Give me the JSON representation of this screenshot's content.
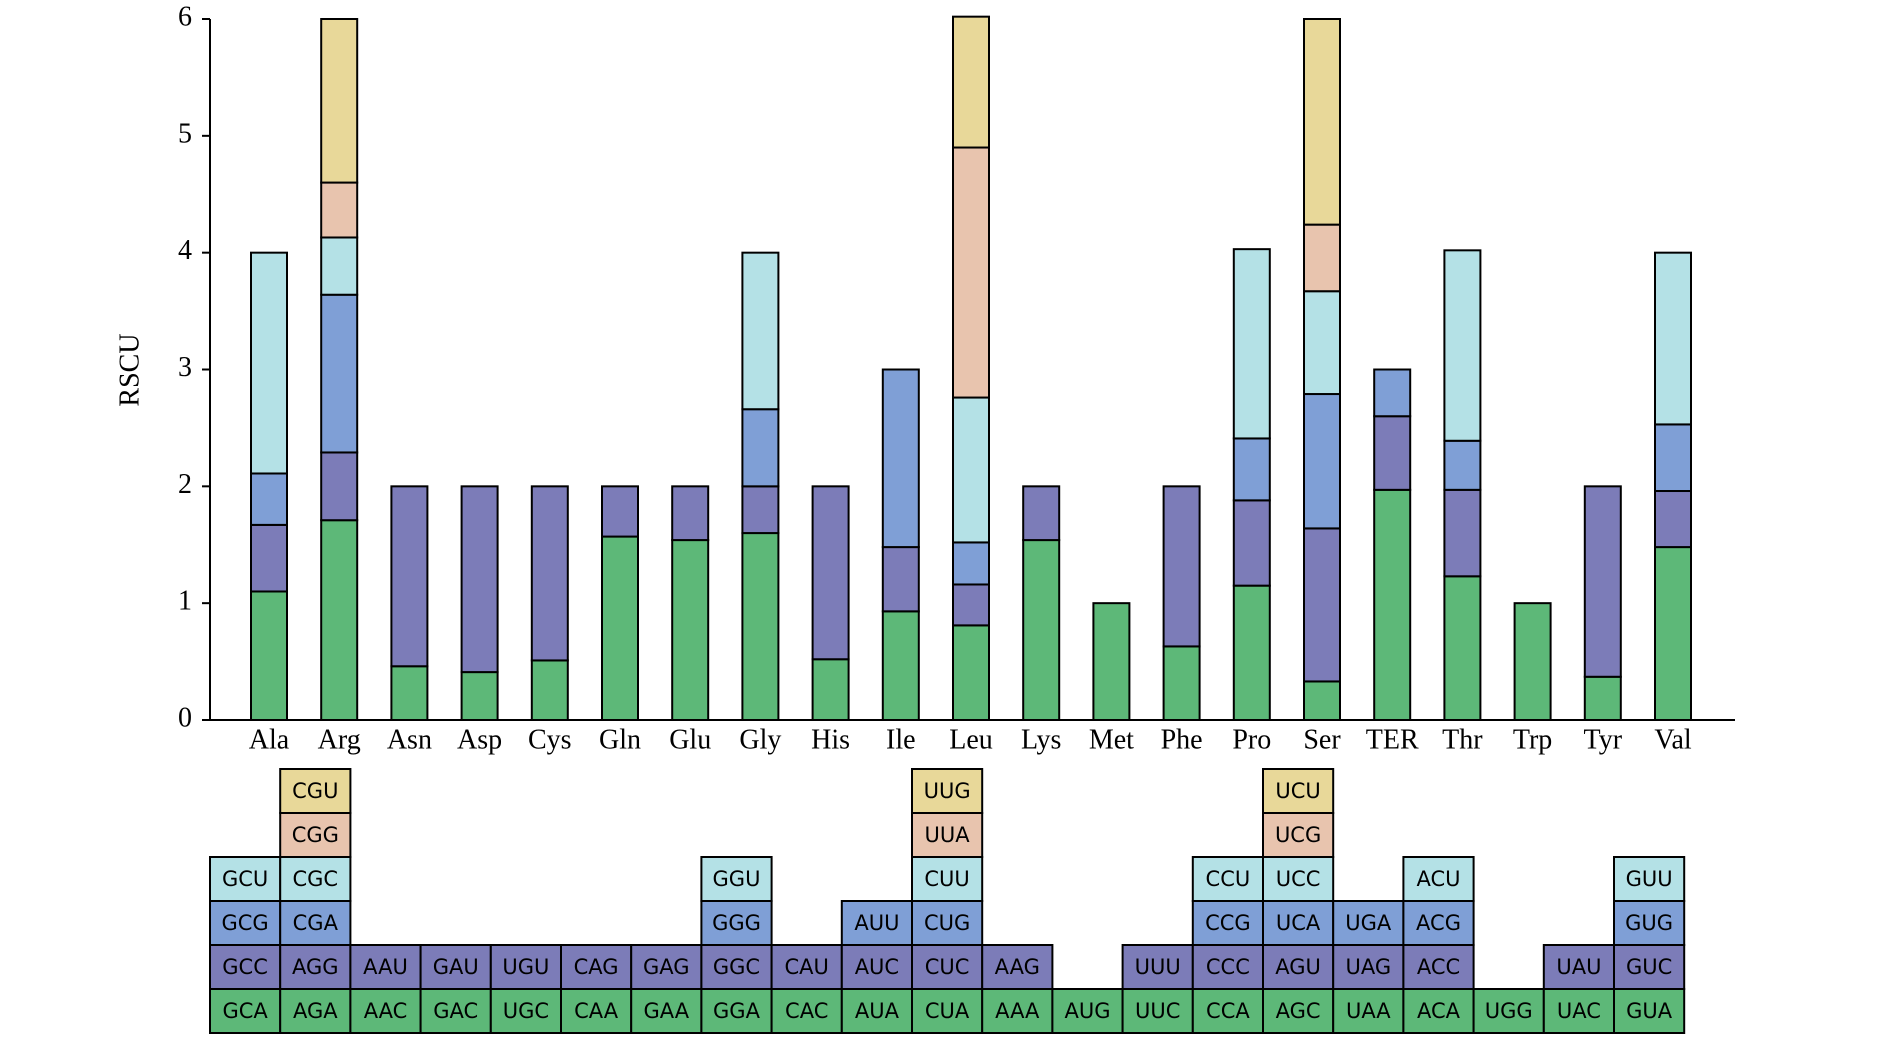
{
  "chart_data": {
    "type": "stacked-bar-codon",
    "y_label": "RSCU",
    "categories": [
      "Ala",
      "Arg",
      "Asn",
      "Asp",
      "Cys",
      "Gln",
      "Glu",
      "Gly",
      "His",
      "Ile",
      "Leu",
      "Lys",
      "Met",
      "Phe",
      "Pro",
      "Ser",
      "TER",
      "Thr",
      "Trp",
      "Tyr",
      "Val"
    ],
    "ylim": [
      0,
      6
    ],
    "yticks": [
      0,
      1,
      2,
      3,
      4,
      5,
      6
    ],
    "series": [
      {
        "color": "#5db878",
        "values": [
          1.1,
          1.71,
          0.46,
          0.41,
          0.51,
          1.57,
          1.54,
          1.6,
          0.52,
          0.93,
          0.81,
          1.54,
          1.0,
          0.63,
          1.15,
          0.33,
          1.97,
          1.23,
          1.0,
          0.37,
          1.48
        ],
        "labels": [
          "GCA",
          "AGA",
          "AAC",
          "GAC",
          "UGC",
          "CAA",
          "GAA",
          "GGA",
          "CAC",
          "AUA",
          "CUA",
          "AAA",
          "AUG",
          "UUC",
          "CCA",
          "AGC",
          "UAA",
          "ACA",
          "UGG",
          "UAC",
          "GUA"
        ]
      },
      {
        "color": "#7c7cb8",
        "values": [
          0.57,
          0.58,
          1.54,
          1.59,
          1.49,
          0.43,
          0.46,
          0.4,
          1.48,
          0.55,
          0.35,
          0.46,
          null,
          1.37,
          0.73,
          1.31,
          0.63,
          0.74,
          null,
          1.63,
          0.48
        ],
        "labels": [
          "GCC",
          "AGG",
          "AAU",
          "GAU",
          "UGU",
          "CAG",
          "GAG",
          "GGC",
          "CAU",
          "AUC",
          "CUC",
          "AAG",
          null,
          "UUU",
          "CCC",
          "AGU",
          "UAG",
          "ACC",
          null,
          "UAU",
          "GUC"
        ]
      },
      {
        "color": "#7f9fd6",
        "values": [
          0.44,
          1.35,
          null,
          null,
          null,
          null,
          null,
          0.66,
          null,
          1.52,
          0.36,
          null,
          null,
          null,
          0.53,
          1.15,
          0.4,
          0.42,
          null,
          null,
          0.57
        ],
        "labels": [
          "GCG",
          "CGA",
          null,
          null,
          null,
          null,
          null,
          "GGG",
          null,
          "AUU",
          "CUG",
          null,
          null,
          null,
          "CCG",
          "UCA",
          "UGA",
          "ACG",
          null,
          null,
          "GUG"
        ]
      },
      {
        "color": "#b4e1e6",
        "values": [
          1.89,
          0.49,
          null,
          null,
          null,
          null,
          null,
          1.34,
          null,
          null,
          1.24,
          null,
          null,
          null,
          1.62,
          0.88,
          null,
          1.63,
          null,
          null,
          1.47
        ],
        "labels": [
          "GCU",
          "CGC",
          null,
          null,
          null,
          null,
          null,
          "GGU",
          null,
          null,
          "CUU",
          null,
          null,
          null,
          "CCU",
          "UCC",
          null,
          "ACU",
          null,
          null,
          "GUU"
        ]
      },
      {
        "color": "#e8c4ae",
        "values": [
          null,
          0.47,
          null,
          null,
          null,
          null,
          null,
          null,
          null,
          null,
          2.14,
          null,
          null,
          null,
          null,
          0.57,
          null,
          null,
          null,
          null,
          null
        ],
        "labels": [
          null,
          "CGG",
          null,
          null,
          null,
          null,
          null,
          null,
          null,
          null,
          "UUA",
          null,
          null,
          null,
          null,
          "UCG",
          null,
          null,
          null,
          null,
          null
        ]
      },
      {
        "color": "#e8d899",
        "values": [
          null,
          1.4,
          null,
          null,
          null,
          null,
          null,
          null,
          null,
          null,
          1.12,
          null,
          null,
          null,
          null,
          1.76,
          null,
          null,
          null,
          null,
          null
        ],
        "labels": [
          null,
          "CGU",
          null,
          null,
          null,
          null,
          null,
          null,
          null,
          null,
          "UUG",
          null,
          null,
          null,
          null,
          "UCU",
          null,
          null,
          null,
          null,
          null
        ]
      }
    ]
  }
}
